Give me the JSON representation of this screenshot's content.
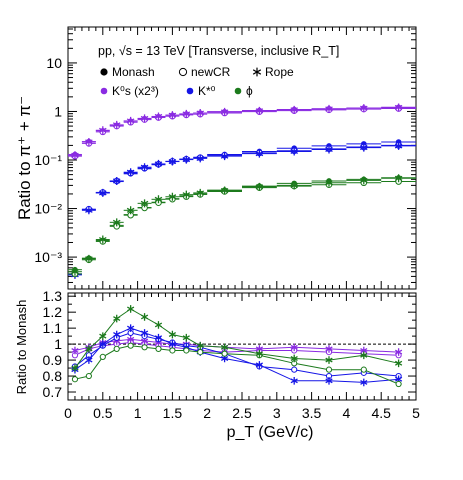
{
  "chart_data": [
    {
      "type": "scatter",
      "panel": "top",
      "ylabel": "Ratio to π⁺ + π⁻",
      "ylog": true,
      "ylim": [
        0.00022,
        55
      ],
      "xlim": [
        0,
        5
      ],
      "annotation": "pp, √s = 13 TeV [Transverse, inclusive R_T]",
      "legend_models": [
        {
          "name": "Monash",
          "marker": "filled-circle"
        },
        {
          "name": "newCR",
          "marker": "open-circle"
        },
        {
          "name": "Rope",
          "marker": "star"
        }
      ],
      "legend_particles": [
        {
          "name": "K⁰s (x2³)",
          "color": "#8a2be2"
        },
        {
          "name": "K*⁰",
          "color": "#1515e6"
        },
        {
          "name": "ϕ",
          "color": "#1c7a1c"
        }
      ],
      "y_ticks": [
        "10⁻³",
        "10⁻²",
        "10⁻¹",
        "1",
        "10"
      ],
      "x": [
        0.1,
        0.3,
        0.5,
        0.7,
        0.9,
        1.1,
        1.3,
        1.5,
        1.7,
        1.9,
        2.25,
        2.75,
        3.25,
        3.75,
        4.25,
        4.75
      ],
      "series": [
        {
          "name": "K0s Monash",
          "values": [
            0.13,
            0.24,
            0.4,
            0.52,
            0.63,
            0.71,
            0.78,
            0.84,
            0.89,
            0.93,
            0.99,
            1.05,
            1.1,
            1.14,
            1.18,
            1.22
          ]
        },
        {
          "name": "K0s newCR",
          "values": [
            0.12,
            0.22,
            0.38,
            0.5,
            0.6,
            0.68,
            0.75,
            0.8,
            0.85,
            0.88,
            0.93,
            0.99,
            1.04,
            1.08,
            1.12,
            1.15
          ]
        },
        {
          "name": "K0s Rope",
          "values": [
            0.125,
            0.235,
            0.41,
            0.53,
            0.64,
            0.72,
            0.79,
            0.84,
            0.89,
            0.93,
            0.98,
            1.03,
            1.08,
            1.13,
            1.17,
            1.21
          ]
        },
        {
          "name": "K*0 Monash",
          "values": [
            0.00045,
            0.0095,
            0.021,
            0.036,
            0.052,
            0.066,
            0.08,
            0.093,
            0.104,
            0.114,
            0.13,
            0.15,
            0.175,
            0.195,
            0.215,
            0.235
          ]
        },
        {
          "name": "K*0 newCR",
          "values": [
            0.00045,
            0.0097,
            0.0215,
            0.037,
            0.054,
            0.068,
            0.082,
            0.094,
            0.104,
            0.112,
            0.125,
            0.14,
            0.155,
            0.17,
            0.185,
            0.2
          ]
        },
        {
          "name": "K*0 Rope",
          "values": [
            0.00043,
            0.0092,
            0.021,
            0.037,
            0.056,
            0.071,
            0.083,
            0.093,
            0.102,
            0.108,
            0.12,
            0.135,
            0.15,
            0.165,
            0.18,
            0.195
          ]
        },
        {
          "name": "phi Monash",
          "values": [
            0.00055,
            0.00095,
            0.0022,
            0.0045,
            0.0075,
            0.0105,
            0.0135,
            0.016,
            0.0182,
            0.0205,
            0.024,
            0.029,
            0.033,
            0.037,
            0.04,
            0.043
          ]
        },
        {
          "name": "phi newCR",
          "values": [
            0.00045,
            0.00088,
            0.0021,
            0.0043,
            0.0073,
            0.0103,
            0.0132,
            0.0156,
            0.0176,
            0.0195,
            0.0225,
            0.027,
            0.029,
            0.031,
            0.034,
            0.036
          ]
        },
        {
          "name": "phi Rope",
          "values": [
            0.0005,
            0.00092,
            0.0023,
            0.0052,
            0.0092,
            0.0128,
            0.0155,
            0.0175,
            0.0193,
            0.021,
            0.0235,
            0.028,
            0.03,
            0.034,
            0.038,
            0.042
          ]
        }
      ]
    },
    {
      "type": "line",
      "panel": "bottom",
      "ylabel": "Ratio to Monash",
      "xlabel": "p_T (GeV/c)",
      "xlim": [
        0,
        5
      ],
      "ylim": [
        0.65,
        1.32
      ],
      "reference_line": 1.0,
      "x_ticks": [
        "0",
        "0.5",
        "1",
        "1.5",
        "2",
        "2.5",
        "3",
        "3.5",
        "4",
        "4.5",
        "5"
      ],
      "y_ticks": [
        "0.7",
        "0.8",
        "0.9",
        "1",
        "1.1",
        "1.2",
        "1.3"
      ],
      "x": [
        0.1,
        0.3,
        0.5,
        0.7,
        0.9,
        1.1,
        1.3,
        1.5,
        1.7,
        1.9,
        2.25,
        2.75,
        3.25,
        3.75,
        4.25,
        4.75
      ],
      "series": [
        {
          "name": "K0s newCR",
          "color": "#8a2be2",
          "marker": "open-circle",
          "values": [
            0.93,
            0.97,
            0.99,
            1.0,
            1.01,
            1.0,
            0.99,
            0.98,
            0.97,
            0.96,
            0.95,
            0.96,
            0.96,
            0.95,
            0.94,
            0.93
          ]
        },
        {
          "name": "K0s Rope",
          "color": "#8a2be2",
          "marker": "star",
          "values": [
            0.96,
            0.98,
            1.01,
            1.02,
            1.03,
            1.02,
            1.01,
            1.0,
            1.0,
            0.99,
            0.98,
            0.97,
            0.98,
            0.97,
            0.96,
            0.95
          ]
        },
        {
          "name": "K*0 newCR",
          "color": "#1515e6",
          "marker": "open-circle",
          "values": [
            0.86,
            0.93,
            0.99,
            1.04,
            1.07,
            1.05,
            1.03,
            1.01,
            0.99,
            0.98,
            0.94,
            0.86,
            0.84,
            0.8,
            0.82,
            0.8
          ]
        },
        {
          "name": "K*0 Rope",
          "color": "#1515e6",
          "marker": "star",
          "values": [
            0.84,
            0.9,
            1.0,
            1.06,
            1.1,
            1.07,
            1.04,
            1.0,
            0.98,
            0.95,
            0.91,
            0.87,
            0.77,
            0.77,
            0.76,
            0.78
          ]
        },
        {
          "name": "phi newCR",
          "color": "#1c7a1c",
          "marker": "open-circle",
          "values": [
            0.78,
            0.8,
            0.92,
            0.97,
            0.99,
            0.98,
            0.97,
            0.96,
            0.96,
            0.95,
            0.94,
            0.93,
            0.88,
            0.84,
            0.84,
            0.75
          ]
        },
        {
          "name": "phi Rope",
          "color": "#1c7a1c",
          "marker": "star",
          "values": [
            0.85,
            0.97,
            1.05,
            1.16,
            1.22,
            1.17,
            1.12,
            1.06,
            1.04,
            0.99,
            0.98,
            0.94,
            0.91,
            0.9,
            0.93,
            0.88
          ]
        }
      ]
    }
  ]
}
